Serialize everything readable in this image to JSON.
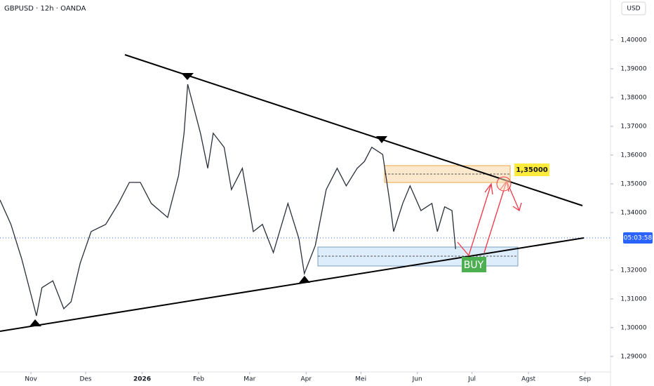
{
  "chart_data": {
    "type": "line",
    "title": "GBPUSD · 12h · OANDA",
    "currency": "USD",
    "price_timer": "05:03:58",
    "annotations": [
      "1,35000",
      "BUY"
    ],
    "x": [
      -17,
      -11,
      -5,
      0,
      3,
      6,
      12,
      18,
      22,
      27,
      33,
      41,
      48,
      54,
      60,
      66,
      75,
      81,
      84,
      86,
      89,
      93,
      97,
      100,
      106,
      110,
      116,
      122,
      127,
      133,
      141,
      147,
      150,
      156,
      162,
      168,
      173,
      179,
      183,
      187,
      193,
      197,
      199,
      204,
      208,
      214,
      220,
      223,
      227,
      231,
      233
    ],
    "series": [
      {
        "name": "GBPUSD",
        "color": "#2a2e39",
        "values": [
          1.3444,
          1.3359,
          1.3237,
          1.3115,
          1.3041,
          1.3139,
          1.3163,
          1.3066,
          1.309,
          1.3224,
          1.3334,
          1.3359,
          1.3432,
          1.3505,
          1.3505,
          1.3432,
          1.3383,
          1.3529,
          1.3676,
          1.3846,
          1.3773,
          1.3676,
          1.3554,
          1.3676,
          1.3627,
          1.348,
          1.3554,
          1.3334,
          1.3359,
          1.3261,
          1.3432,
          1.331,
          1.3188,
          1.3285,
          1.348,
          1.3554,
          1.3493,
          1.3554,
          1.3578,
          1.3627,
          1.3602,
          1.3432,
          1.3334,
          1.3432,
          1.3493,
          1.3407,
          1.3432,
          1.3334,
          1.342,
          1.3407,
          1.3273
        ]
      }
    ],
    "xlim": [
      -17,
      318
    ],
    "xticks": [
      {
        "value": 0,
        "label": "Nov"
      },
      {
        "value": 30,
        "label": "Des"
      },
      {
        "value": 61,
        "label": "2026"
      },
      {
        "value": 92,
        "label": "Feb"
      },
      {
        "value": 120,
        "label": "Mar"
      },
      {
        "value": 151,
        "label": "Apr"
      },
      {
        "value": 181,
        "label": "Mei"
      },
      {
        "value": 212,
        "label": "Jun"
      },
      {
        "value": 242,
        "label": "Jul"
      },
      {
        "value": 273,
        "label": "Agst"
      },
      {
        "value": 304,
        "label": "Sep"
      }
    ],
    "ylim": [
      1.2846,
      1.4139
    ],
    "yticks": [
      {
        "value": 1.29,
        "label": "1,29000"
      },
      {
        "value": 1.3,
        "label": "1,30000"
      },
      {
        "value": 1.31,
        "label": "1,31000"
      },
      {
        "value": 1.32,
        "label": "1,32000"
      },
      {
        "value": 1.34,
        "label": "1,34000"
      },
      {
        "value": 1.35,
        "label": "1,35000"
      },
      {
        "value": 1.36,
        "label": "1,36000"
      },
      {
        "value": 1.37,
        "label": "1,37000"
      },
      {
        "value": 1.38,
        "label": "1,38000"
      },
      {
        "value": 1.39,
        "label": "1,39000"
      },
      {
        "value": 1.4,
        "label": "1,40000"
      }
    ],
    "grid": false
  }
}
